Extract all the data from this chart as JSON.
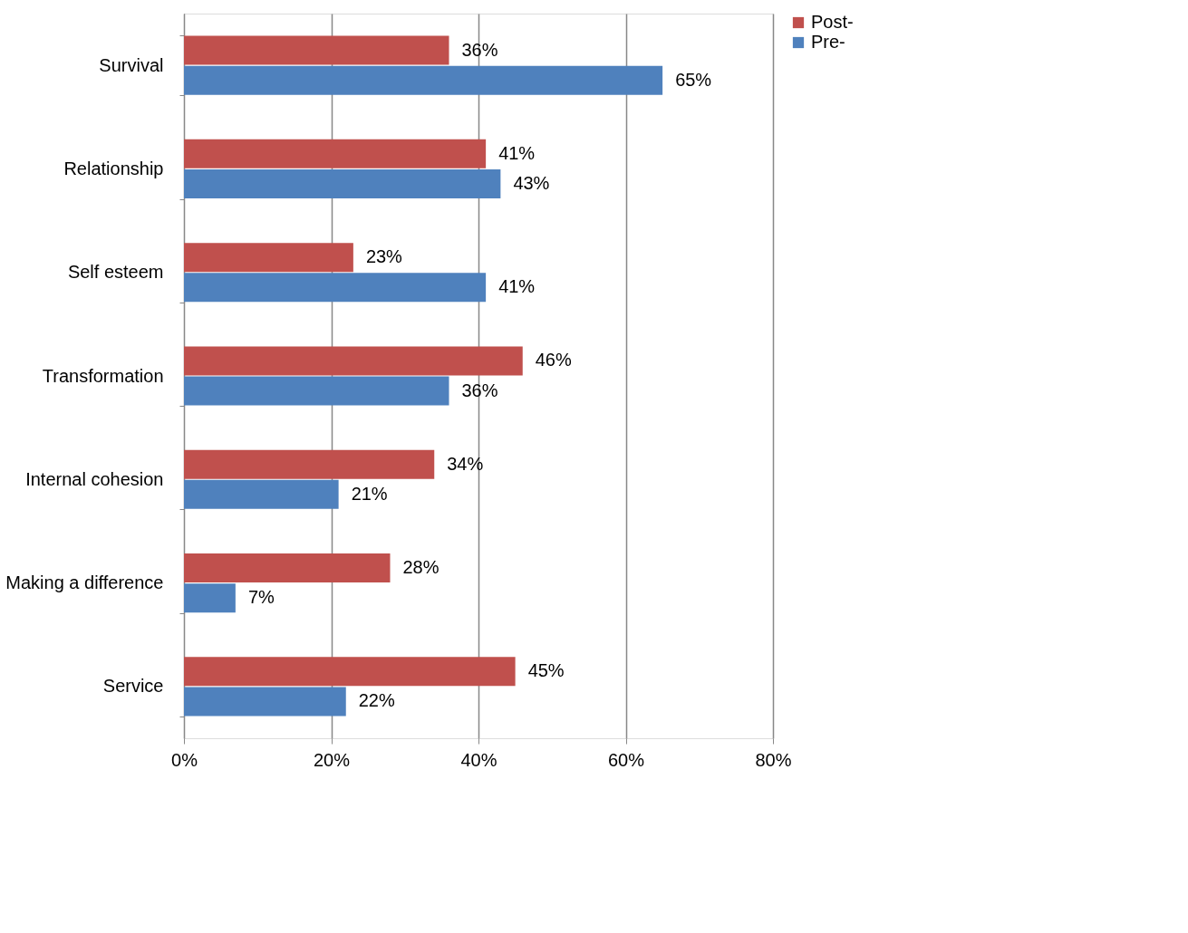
{
  "chart_data": {
    "type": "bar",
    "orientation": "horizontal",
    "categories": [
      "Survival",
      "Relationship",
      "Self esteem",
      "Transformation",
      "Internal cohesion",
      "Making a difference",
      "Service"
    ],
    "series": [
      {
        "name": "Post-",
        "color": "#c0504d",
        "values": [
          36,
          41,
          23,
          46,
          34,
          28,
          45
        ],
        "value_labels": [
          "36%",
          "41%",
          "23%",
          "46%",
          "34%",
          "28%",
          "45%"
        ]
      },
      {
        "name": "Pre-",
        "color": "#4f81bd",
        "values": [
          65,
          43,
          41,
          36,
          21,
          7,
          22
        ],
        "value_labels": [
          "65%",
          "43%",
          "41%",
          "36%",
          "21%",
          "7%",
          "22%"
        ]
      }
    ],
    "xlim": [
      0,
      80
    ],
    "xticks": [
      {
        "value": 0,
        "label": "0%"
      },
      {
        "value": 20,
        "label": "20%"
      },
      {
        "value": 40,
        "label": "40%"
      },
      {
        "value": 60,
        "label": "60%"
      },
      {
        "value": 80,
        "label": "80%"
      }
    ],
    "grid": "x",
    "legend": "right"
  }
}
